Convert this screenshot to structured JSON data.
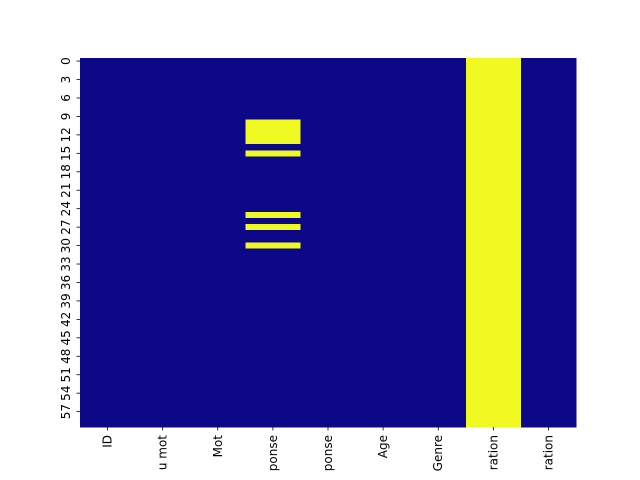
{
  "chart_data": {
    "type": "heatmap",
    "title": "",
    "xlabel": "",
    "ylabel": "",
    "columns": [
      "ID",
      "u mot",
      "Mot",
      "ponse",
      "ponse",
      "Age",
      "Genre",
      "ration",
      "ration"
    ],
    "row_count": 60,
    "row_tick_labels": [
      "0",
      "3",
      "6",
      "9",
      "12",
      "15",
      "18",
      "21",
      "24",
      "27",
      "30",
      "33",
      "36",
      "39",
      "42",
      "45",
      "48",
      "51",
      "54",
      "57"
    ],
    "row_tick_step": 3,
    "value_colors": {
      "0": "#0d0887",
      "1": "#f0f921"
    },
    "missing_cells": [
      {
        "column": 3,
        "rows": [
          10,
          11,
          12,
          13,
          15,
          25,
          27,
          30
        ]
      },
      {
        "column": 7,
        "rows": "all"
      }
    ],
    "colorbar": false,
    "grid": false
  }
}
